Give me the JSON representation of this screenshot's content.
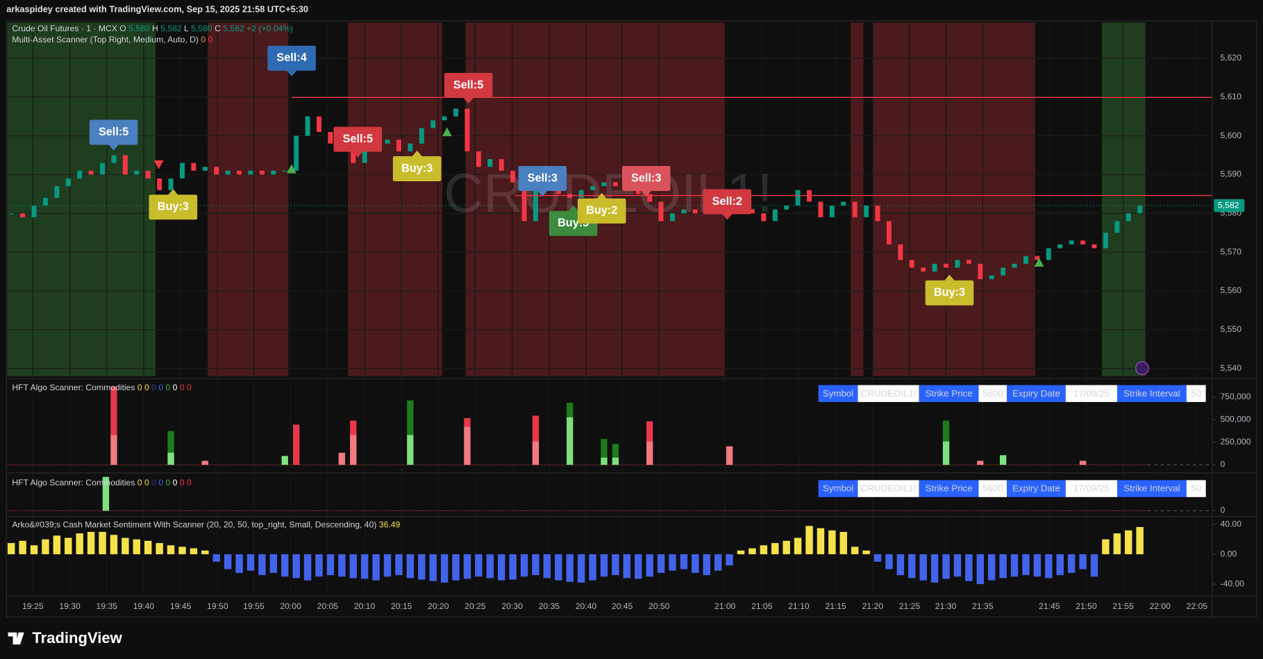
{
  "header": {
    "text": "arkaspidey created with TradingView.com, Sep 15, 2025 21:58 UTC+5:30"
  },
  "footer": {
    "brand": "TradingView"
  },
  "chart_data": [
    {
      "type": "candlestick",
      "title": "Crude Oil Futures · 1 · MCX",
      "ohlc": [
        {
          "label": "O",
          "value": "5,580"
        },
        {
          "label": "H",
          "value": "5,582"
        },
        {
          "label": "L",
          "value": "5,580"
        },
        {
          "label": "C",
          "value": "5,582"
        }
      ],
      "change": "+2 (+0.04%)",
      "subtitle": "Multi-Asset Scanner (Top Right, Medium, Auto, D)",
      "subtitle_values": [
        0,
        0
      ],
      "subtitle_colors": [
        "#f0a030",
        "#f23645"
      ],
      "watermark": "CRUDEOIL1!",
      "xlim": [
        -0.35,
        105.35
      ],
      "open": [
        5580,
        5580,
        5579,
        5582,
        5584,
        5587,
        5589,
        5591,
        5590,
        5593,
        5595,
        5590,
        5591,
        5589,
        5586,
        5589,
        5593,
        5591,
        5592,
        5590,
        5591,
        5590,
        5591,
        5590,
        5591,
        5591,
        5600,
        5605,
        5601,
        5598,
        5596,
        5593,
        5596,
        5598,
        5599,
        5596,
        5598,
        5602,
        5604,
        5605,
        5607,
        5596,
        5592,
        5594,
        5591,
        5588,
        5578,
        5586,
        5587,
        5585,
        5584,
        5586,
        5587,
        5588,
        5587,
        5586,
        5585,
        5583,
        5578,
        5580,
        5581,
        5580,
        5582,
        5581,
        5580,
        5581,
        5580,
        5578,
        5581,
        5582,
        5586,
        5583,
        5579,
        5582,
        5583,
        5579,
        5582,
        5578,
        5572,
        5568,
        5566,
        5565,
        5567,
        5566,
        5568,
        5567,
        5563,
        5564,
        5566,
        5567,
        5569,
        5568,
        5571,
        5572,
        5573,
        5572,
        5571,
        5575,
        5578,
        5580
      ],
      "close": [
        5580,
        5579,
        5582,
        5584,
        5587,
        5589,
        5591,
        5590,
        5593,
        5595,
        5590,
        5591,
        5589,
        5586,
        5589,
        5593,
        5591,
        5592,
        5590,
        5591,
        5590,
        5591,
        5590,
        5591,
        5591,
        5600,
        5605,
        5601,
        5598,
        5596,
        5593,
        5596,
        5598,
        5599,
        5596,
        5598,
        5602,
        5604,
        5605,
        5607,
        5596,
        5592,
        5594,
        5591,
        5588,
        5578,
        5586,
        5587,
        5585,
        5584,
        5586,
        5587,
        5588,
        5587,
        5586,
        5585,
        5583,
        5578,
        5580,
        5581,
        5580,
        5582,
        5581,
        5580,
        5581,
        5580,
        5578,
        5581,
        5582,
        5586,
        5583,
        5579,
        5582,
        5583,
        5579,
        5582,
        5578,
        5572,
        5568,
        5566,
        5565,
        5567,
        5566,
        5568,
        5567,
        5563,
        5564,
        5566,
        5567,
        5569,
        5568,
        5571,
        5572,
        5573,
        5572,
        5571,
        5575,
        5578,
        5580,
        5582
      ],
      "up_color": "#089981",
      "down_color": "#f23645",
      "ylim": [
        5538,
        5629.2
      ],
      "yticks": [
        {
          "value": 5540,
          "label": "5,540"
        },
        {
          "value": 5550,
          "label": "5,550"
        },
        {
          "value": 5560,
          "label": "5,560"
        },
        {
          "value": 5570,
          "label": "5,570"
        },
        {
          "value": 5580,
          "label": "5,580"
        },
        {
          "value": 5590,
          "label": "5,590"
        },
        {
          "value": 5600,
          "label": "5,600"
        },
        {
          "value": 5610,
          "label": "5,610"
        },
        {
          "value": 5620,
          "label": "5,620"
        }
      ],
      "last": {
        "value": 5582,
        "label": "5,582"
      },
      "levels": [
        {
          "value": 5609.9,
          "from": 24.6,
          "color": "#f23645"
        },
        {
          "value": 5584.6,
          "from": 44.2,
          "color": "#f23645"
        }
      ],
      "annotations": [
        {
          "text": "Sell:5",
          "x": 8.98,
          "y": 5600.9,
          "pointer": "down",
          "color": "#4a7fc0"
        },
        {
          "text": "Buy:3",
          "x": 14.2,
          "y": 5581.6,
          "pointer": "up",
          "color": "#c9bd2c"
        },
        {
          "text": "Sell:4",
          "x": 24.6,
          "y": 5620,
          "pointer": "down",
          "color": "#2f6bb3"
        },
        {
          "text": "Sell:5",
          "x": 40.1,
          "y": 5613.0,
          "pointer": "down",
          "color": "#d2383f"
        },
        {
          "text": "Sell:5",
          "x": 30.4,
          "y": 5599.1,
          "pointer": "down",
          "color": "#d2383f"
        },
        {
          "text": "Buy:3",
          "x": 35.6,
          "y": 5591.5,
          "pointer": "up",
          "color": "#c9bd2c"
        },
        {
          "text": "Sell:3",
          "x": 46.6,
          "y": 5589.0,
          "pointer": "down",
          "color": "#4a7fc0"
        },
        {
          "text": "Buy:5",
          "x": 49.3,
          "y": 5577.4,
          "pointer": "up",
          "color": "#3d8b3d"
        },
        {
          "text": "Buy:2",
          "x": 51.8,
          "y": 5580.6,
          "pointer": "up",
          "color": "#c9bd2c"
        },
        {
          "text": "Sell:3",
          "x": 55.7,
          "y": 5589.0,
          "pointer": "down",
          "color": "#d9525c"
        },
        {
          "text": "Sell:2",
          "x": 62.8,
          "y": 5583.0,
          "pointer": "down",
          "color": "#d2383f"
        },
        {
          "text": "Buy:3",
          "x": 82.3,
          "y": 5559.5,
          "pointer": "up",
          "color": "#c9bd2c"
        }
      ]
    },
    {
      "type": "bar",
      "title": "HFT Algo Scanner: Commodities",
      "legend_values": [
        0,
        0,
        0,
        0,
        0,
        0,
        0,
        0
      ],
      "legend_colors": [
        "#f5e14a",
        "#f5e14a",
        "#2b3fa0",
        "#4263eb",
        "#4caf50",
        "#ffffff",
        "#f23645",
        "#f23645"
      ],
      "table": [
        "Symbol",
        "CRUDEOIL1!",
        "Strike Price",
        5600,
        "Expiry Date",
        "17/09/25",
        "Strike Interval",
        50
      ],
      "xlim": [
        -0.35,
        105.35
      ],
      "x": [
        9,
        14,
        17,
        24,
        25,
        29,
        30,
        35,
        40,
        46,
        49,
        52,
        53,
        56,
        63,
        82,
        85,
        87,
        94
      ],
      "values": [
        866000,
        375000,
        45000,
        98000,
        446000,
        134000,
        491000,
        714000,
        518000,
        545000,
        688000,
        286000,
        232000,
        482000,
        205000,
        491000,
        45000,
        107000,
        45000
      ],
      "lower_values": [
        330000,
        134000,
        45000,
        98000,
        0,
        134000,
        330000,
        330000,
        420000,
        259000,
        527000,
        80000,
        80000,
        259000,
        205000,
        259000,
        45000,
        107000,
        45000
      ],
      "sides": [
        "down",
        "up",
        "down",
        "up",
        "down",
        "down",
        "down",
        "up",
        "down",
        "down",
        "up",
        "up",
        "up",
        "down",
        "down",
        "up",
        "down",
        "up",
        "down"
      ],
      "palette": {
        "up": [
          "#1e7b1e",
          "#7ee07e"
        ],
        "down": [
          "#e8384a",
          "#f07a80"
        ]
      },
      "ylim": [
        -71400,
        937500
      ],
      "yticks": [
        0,
        {
          "value": 250000,
          "label": "250,000"
        },
        {
          "value": 500000,
          "label": "500,000"
        },
        {
          "value": 750000,
          "label": "750,000"
        }
      ]
    },
    {
      "type": "bar",
      "title": "HFT Algo Scanner: Commodities",
      "legend_values": [
        0,
        0,
        0,
        0,
        0,
        0,
        0,
        0
      ],
      "legend_colors": [
        "#f5e14a",
        "#f5e14a",
        "#2b3fa0",
        "#4263eb",
        "#4caf50",
        "#ffffff",
        "#f23645",
        "#f23645"
      ],
      "table": [
        "Symbol",
        "CRUDEOIL1!",
        "Strike Price",
        5600,
        "Expiry Date",
        "17/09/25",
        "Strike Interval",
        50
      ],
      "xlim": [
        -0.35,
        105.35
      ],
      "x": [
        8.3
      ],
      "values": [
        9130
      ],
      "lower_values": [
        9130
      ],
      "sides": [
        "up"
      ],
      "palette": {
        "up": [
          "#1e7b1e",
          "#7ee07e"
        ],
        "down": [
          "#e8384a",
          "#f07a80"
        ]
      },
      "ylim": [
        -1304,
        9565
      ],
      "yticks": [
        0
      ]
    },
    {
      "type": "signed_bar",
      "title": "Arko&#039;s Cash Market Sentiment With Scanner (20, 20, 50, top_right, Small, Descending, 40)",
      "last_label": "36.49",
      "colors": {
        "positive": "#f5e14a",
        "negative": "#4263eb"
      },
      "xlim": [
        -0.35,
        105.35
      ],
      "values": [
        15,
        18,
        12,
        20,
        25,
        22,
        28,
        30,
        30,
        26,
        22,
        20,
        18,
        15,
        12,
        10,
        8,
        5,
        -10,
        -20,
        -25,
        -22,
        -28,
        -25,
        -30,
        -32,
        -35,
        -30,
        -28,
        -30,
        -32,
        -33,
        -35,
        -30,
        -28,
        -32,
        -34,
        -36,
        -38,
        -35,
        -33,
        -30,
        -32,
        -35,
        -34,
        -30,
        -28,
        -32,
        -35,
        -37,
        -38,
        -35,
        -30,
        -28,
        -32,
        -33,
        -30,
        -25,
        -22,
        -20,
        -25,
        -28,
        -22,
        -15,
        5,
        8,
        12,
        15,
        18,
        22,
        38,
        35,
        32,
        30,
        10,
        5,
        -10,
        -20,
        -28,
        -32,
        -35,
        -38,
        -33,
        -30,
        -36,
        -40,
        -35,
        -32,
        -30,
        -28,
        -30,
        -32,
        -28,
        -25,
        -20,
        -30,
        20,
        28,
        32,
        36.49
      ],
      "ylim": [
        -56.2,
        49.7
      ],
      "yticks": [
        {
          "value": 40,
          "label": "40.00"
        },
        {
          "value": 0,
          "label": "0.00"
        },
        {
          "value": -40,
          "label": "-40.00"
        }
      ],
      "xticks": [
        {
          "value": 1.9,
          "label": "19:25"
        },
        {
          "value": 5.14,
          "label": "19:30"
        },
        {
          "value": 8.38,
          "label": "19:35"
        },
        {
          "value": 11.62,
          "label": "19:40"
        },
        {
          "value": 14.86,
          "label": "19:45"
        },
        {
          "value": 18.1,
          "label": "19:50"
        },
        {
          "value": 21.27,
          "label": "19:55"
        },
        {
          "value": 24.51,
          "label": "20:00"
        },
        {
          "value": 27.75,
          "label": "20:05"
        },
        {
          "value": 30.99,
          "label": "20:10"
        },
        {
          "value": 34.23,
          "label": "20:15"
        },
        {
          "value": 37.46,
          "label": "20:20"
        },
        {
          "value": 40.7,
          "label": "20:25"
        },
        {
          "value": 43.94,
          "label": "20:30"
        },
        {
          "value": 47.18,
          "label": "20:35"
        },
        {
          "value": 50.42,
          "label": "20:40"
        },
        {
          "value": 53.59,
          "label": "20:45"
        },
        {
          "value": 56.83,
          "label": "20:50"
        },
        {
          "value": 62.61,
          "label": "21:00"
        },
        {
          "value": 65.85,
          "label": "21:05"
        },
        {
          "value": 69.08,
          "label": "21:10"
        },
        {
          "value": 72.32,
          "label": "21:15"
        },
        {
          "value": 75.56,
          "label": "21:20"
        },
        {
          "value": 78.8,
          "label": "21:25"
        },
        {
          "value": 81.97,
          "label": "21:30"
        },
        {
          "value": 85.21,
          "label": "21:35"
        },
        {
          "value": 91.06,
          "label": "21:45"
        },
        {
          "value": 94.3,
          "label": "21:50"
        },
        {
          "value": 97.54,
          "label": "21:55"
        },
        {
          "value": 100.77,
          "label": "22:00"
        },
        {
          "value": 104.01,
          "label": "22:05"
        }
      ]
    }
  ]
}
